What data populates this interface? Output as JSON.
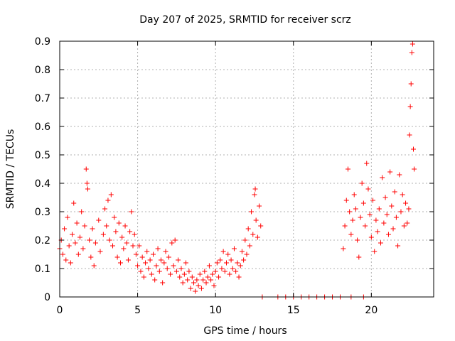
{
  "chart_data": {
    "type": "scatter",
    "title": "Day 207 of 2025, SRMTID for receiver scrz",
    "xlabel": "GPS time / hours",
    "ylabel": "SRMTID / TECUs",
    "xlim": [
      0,
      24
    ],
    "ylim": [
      0,
      0.9
    ],
    "x_ticks": [
      0,
      5,
      10,
      15,
      20
    ],
    "y_ticks": [
      0,
      0.1,
      0.2,
      0.3,
      0.4,
      0.5,
      0.6,
      0.7,
      0.8,
      0.9
    ],
    "x_tick_labels": [
      "0",
      "5",
      "10",
      "15",
      "20"
    ],
    "y_tick_labels": [
      "0",
      "0.1",
      "0.2",
      "0.3",
      "0.4",
      "0.5",
      "0.6",
      "0.7",
      "0.8",
      "0.9"
    ],
    "grid": true,
    "marker": "+",
    "series_color": "#ff0000",
    "series": [
      {
        "name": "SRMTID",
        "points": [
          [
            0.0,
            0.17
          ],
          [
            0.1,
            0.2
          ],
          [
            0.2,
            0.15
          ],
          [
            0.3,
            0.24
          ],
          [
            0.4,
            0.13
          ],
          [
            0.5,
            0.28
          ],
          [
            0.6,
            0.18
          ],
          [
            0.7,
            0.12
          ],
          [
            0.8,
            0.22
          ],
          [
            0.9,
            0.33
          ],
          [
            1.0,
            0.19
          ],
          [
            1.1,
            0.26
          ],
          [
            1.2,
            0.15
          ],
          [
            1.3,
            0.21
          ],
          [
            1.4,
            0.3
          ],
          [
            1.5,
            0.17
          ],
          [
            1.6,
            0.25
          ],
          [
            1.7,
            0.45
          ],
          [
            1.75,
            0.4
          ],
          [
            1.8,
            0.38
          ],
          [
            1.9,
            0.2
          ],
          [
            2.0,
            0.14
          ],
          [
            2.1,
            0.24
          ],
          [
            2.2,
            0.11
          ],
          [
            2.3,
            0.19
          ],
          [
            2.5,
            0.27
          ],
          [
            2.6,
            0.16
          ],
          [
            2.8,
            0.22
          ],
          [
            2.9,
            0.31
          ],
          [
            3.0,
            0.25
          ],
          [
            3.1,
            0.34
          ],
          [
            3.2,
            0.2
          ],
          [
            3.3,
            0.36
          ],
          [
            3.4,
            0.18
          ],
          [
            3.5,
            0.28
          ],
          [
            3.6,
            0.23
          ],
          [
            3.7,
            0.14
          ],
          [
            3.8,
            0.26
          ],
          [
            3.9,
            0.12
          ],
          [
            4.0,
            0.21
          ],
          [
            4.1,
            0.17
          ],
          [
            4.2,
            0.25
          ],
          [
            4.3,
            0.19
          ],
          [
            4.4,
            0.13
          ],
          [
            4.5,
            0.23
          ],
          [
            4.6,
            0.3
          ],
          [
            4.7,
            0.18
          ],
          [
            4.8,
            0.22
          ],
          [
            4.9,
            0.15
          ],
          [
            5.0,
            0.11
          ],
          [
            5.1,
            0.18
          ],
          [
            5.2,
            0.09
          ],
          [
            5.3,
            0.14
          ],
          [
            5.4,
            0.07
          ],
          [
            5.5,
            0.12
          ],
          [
            5.6,
            0.16
          ],
          [
            5.7,
            0.1
          ],
          [
            5.8,
            0.13
          ],
          [
            5.9,
            0.08
          ],
          [
            6.0,
            0.15
          ],
          [
            6.1,
            0.06
          ],
          [
            6.2,
            0.11
          ],
          [
            6.3,
            0.17
          ],
          [
            6.4,
            0.09
          ],
          [
            6.5,
            0.13
          ],
          [
            6.6,
            0.05
          ],
          [
            6.7,
            0.12
          ],
          [
            6.8,
            0.16
          ],
          [
            6.9,
            0.1
          ],
          [
            7.0,
            0.14
          ],
          [
            7.1,
            0.08
          ],
          [
            7.2,
            0.19
          ],
          [
            7.3,
            0.11
          ],
          [
            7.4,
            0.2
          ],
          [
            7.5,
            0.09
          ],
          [
            7.6,
            0.13
          ],
          [
            7.7,
            0.07
          ],
          [
            7.8,
            0.1
          ],
          [
            7.9,
            0.05
          ],
          [
            8.0,
            0.08
          ],
          [
            8.1,
            0.12
          ],
          [
            8.2,
            0.06
          ],
          [
            8.3,
            0.09
          ],
          [
            8.4,
            0.03
          ],
          [
            8.5,
            0.07
          ],
          [
            8.6,
            0.05
          ],
          [
            8.7,
            0.02
          ],
          [
            8.8,
            0.06
          ],
          [
            8.9,
            0.04
          ],
          [
            9.0,
            0.08
          ],
          [
            9.1,
            0.03
          ],
          [
            9.2,
            0.06
          ],
          [
            9.3,
            0.09
          ],
          [
            9.4,
            0.05
          ],
          [
            9.5,
            0.07
          ],
          [
            9.6,
            0.11
          ],
          [
            9.7,
            0.06
          ],
          [
            9.8,
            0.08
          ],
          [
            9.9,
            0.04
          ],
          [
            10.0,
            0.09
          ],
          [
            10.1,
            0.12
          ],
          [
            10.2,
            0.07
          ],
          [
            10.3,
            0.13
          ],
          [
            10.4,
            0.1
          ],
          [
            10.5,
            0.16
          ],
          [
            10.6,
            0.09
          ],
          [
            10.7,
            0.12
          ],
          [
            10.8,
            0.15
          ],
          [
            10.9,
            0.08
          ],
          [
            11.0,
            0.13
          ],
          [
            11.1,
            0.1
          ],
          [
            11.2,
            0.17
          ],
          [
            11.3,
            0.09
          ],
          [
            11.4,
            0.12
          ],
          [
            11.5,
            0.07
          ],
          [
            11.6,
            0.11
          ],
          [
            11.7,
            0.16
          ],
          [
            11.8,
            0.13
          ],
          [
            11.9,
            0.2
          ],
          [
            12.0,
            0.15
          ],
          [
            12.1,
            0.24
          ],
          [
            12.2,
            0.18
          ],
          [
            12.3,
            0.3
          ],
          [
            12.4,
            0.22
          ],
          [
            12.5,
            0.36
          ],
          [
            12.55,
            0.38
          ],
          [
            12.6,
            0.27
          ],
          [
            12.7,
            0.21
          ],
          [
            12.8,
            0.32
          ],
          [
            12.9,
            0.25
          ],
          [
            13.0,
            0.0
          ],
          [
            14.0,
            0.0
          ],
          [
            14.5,
            0.0
          ],
          [
            15.0,
            0.0
          ],
          [
            15.5,
            0.0
          ],
          [
            16.0,
            0.0
          ],
          [
            16.5,
            0.0
          ],
          [
            17.0,
            0.0
          ],
          [
            17.5,
            0.0
          ],
          [
            18.0,
            0.0
          ],
          [
            18.7,
            0.0
          ],
          [
            19.5,
            0.0
          ],
          [
            18.2,
            0.17
          ],
          [
            18.3,
            0.25
          ],
          [
            18.4,
            0.34
          ],
          [
            18.5,
            0.45
          ],
          [
            18.6,
            0.3
          ],
          [
            18.7,
            0.22
          ],
          [
            18.8,
            0.27
          ],
          [
            18.9,
            0.36
          ],
          [
            19.0,
            0.31
          ],
          [
            19.1,
            0.2
          ],
          [
            19.2,
            0.14
          ],
          [
            19.3,
            0.28
          ],
          [
            19.4,
            0.4
          ],
          [
            19.5,
            0.33
          ],
          [
            19.6,
            0.25
          ],
          [
            19.7,
            0.47
          ],
          [
            19.8,
            0.38
          ],
          [
            19.9,
            0.29
          ],
          [
            20.0,
            0.21
          ],
          [
            20.1,
            0.34
          ],
          [
            20.2,
            0.16
          ],
          [
            20.3,
            0.27
          ],
          [
            20.4,
            0.23
          ],
          [
            20.5,
            0.31
          ],
          [
            20.6,
            0.19
          ],
          [
            20.7,
            0.42
          ],
          [
            20.8,
            0.26
          ],
          [
            20.9,
            0.35
          ],
          [
            21.0,
            0.29
          ],
          [
            21.1,
            0.22
          ],
          [
            21.2,
            0.44
          ],
          [
            21.3,
            0.32
          ],
          [
            21.4,
            0.24
          ],
          [
            21.5,
            0.37
          ],
          [
            21.6,
            0.28
          ],
          [
            21.7,
            0.18
          ],
          [
            21.8,
            0.43
          ],
          [
            21.9,
            0.3
          ],
          [
            22.0,
            0.36
          ],
          [
            22.1,
            0.25
          ],
          [
            22.2,
            0.33
          ],
          [
            22.3,
            0.26
          ],
          [
            22.4,
            0.31
          ],
          [
            22.45,
            0.57
          ],
          [
            22.5,
            0.67
          ],
          [
            22.55,
            0.75
          ],
          [
            22.6,
            0.86
          ],
          [
            22.65,
            0.89
          ],
          [
            22.7,
            0.52
          ],
          [
            22.75,
            0.45
          ]
        ]
      }
    ]
  }
}
